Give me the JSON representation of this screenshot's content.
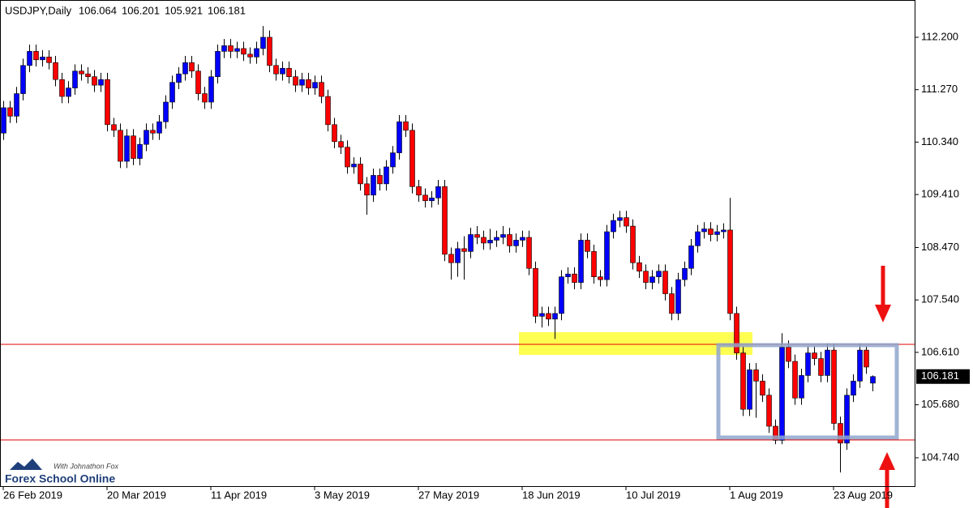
{
  "chart_data": {
    "type": "candlestick",
    "title": "USDJPY,Daily",
    "bull_color": "#0000ff",
    "bear_color": "#ff0000",
    "watermark": {
      "brand": "Forex School Online",
      "tagline": "With Johnathon Fox"
    },
    "categories": [
      "26 Feb 2019",
      null,
      null,
      null,
      null,
      null,
      null,
      null,
      null,
      null,
      null,
      null,
      null,
      null,
      null,
      null,
      "20 Mar 2019",
      null,
      null,
      null,
      null,
      null,
      null,
      null,
      null,
      null,
      null,
      null,
      null,
      null,
      null,
      null,
      "11 Apr 2019",
      null,
      null,
      null,
      null,
      null,
      null,
      null,
      null,
      null,
      null,
      null,
      null,
      null,
      null,
      null,
      "3 May 2019",
      null,
      null,
      null,
      null,
      null,
      null,
      null,
      null,
      null,
      null,
      null,
      null,
      null,
      null,
      null,
      "27 May 2019",
      null,
      null,
      null,
      null,
      null,
      null,
      null,
      null,
      null,
      null,
      null,
      null,
      null,
      null,
      null,
      "18 Jun 2019",
      null,
      null,
      null,
      null,
      null,
      null,
      null,
      null,
      null,
      null,
      null,
      null,
      null,
      null,
      null,
      "10 Jul 2019",
      null,
      null,
      null,
      null,
      null,
      null,
      null,
      null,
      null,
      null,
      null,
      null,
      null,
      null,
      null,
      "1 Aug 2019",
      null,
      null,
      null,
      null,
      null,
      null,
      null,
      null,
      null,
      null,
      null,
      null,
      null,
      null,
      null,
      "23 Aug 2019",
      null,
      null,
      null,
      null,
      null,
      null
    ],
    "open": [
      110.5,
      110.95,
      110.8,
      111.2,
      111.7,
      111.95,
      111.8,
      111.85,
      111.75,
      111.45,
      111.15,
      111.3,
      111.6,
      111.55,
      111.5,
      111.35,
      111.45,
      110.65,
      110.55,
      110.0,
      110.45,
      110.05,
      110.3,
      110.55,
      110.5,
      110.7,
      111.05,
      111.4,
      111.55,
      111.75,
      111.6,
      111.2,
      111.05,
      111.5,
      111.95,
      112.05,
      111.95,
      112.0,
      111.9,
      111.85,
      112.0,
      112.2,
      111.7,
      111.55,
      111.65,
      111.5,
      111.35,
      111.45,
      111.3,
      111.4,
      111.15,
      110.65,
      110.35,
      110.25,
      109.9,
      109.95,
      109.6,
      109.4,
      109.75,
      109.6,
      109.9,
      110.15,
      110.7,
      110.55,
      109.55,
      109.4,
      109.3,
      109.35,
      109.55,
      108.35,
      108.2,
      108.45,
      108.4,
      108.7,
      108.65,
      108.55,
      108.6,
      108.65,
      108.7,
      108.5,
      108.6,
      108.65,
      108.1,
      107.25,
      107.3,
      107.2,
      107.3,
      107.95,
      108.0,
      107.85,
      108.6,
      108.4,
      107.95,
      107.9,
      108.75,
      108.95,
      109.0,
      108.85,
      108.2,
      108.05,
      107.85,
      107.95,
      108.05,
      107.65,
      107.3,
      107.9,
      108.1,
      108.5,
      108.75,
      108.8,
      108.7,
      108.75,
      108.78,
      107.3,
      106.6,
      105.6,
      106.3,
      106.1,
      105.85,
      105.3,
      105.05,
      106.7,
      106.45,
      105.8,
      106.2,
      106.6,
      106.5,
      106.2,
      106.65,
      105.35,
      105.0,
      105.85,
      106.1,
      106.65,
      106.064
    ],
    "high": [
      111.07,
      111.07,
      111.32,
      111.82,
      112.07,
      112.07,
      111.97,
      111.97,
      111.87,
      111.57,
      111.42,
      111.72,
      111.72,
      111.67,
      111.62,
      111.57,
      111.57,
      110.77,
      110.67,
      110.57,
      110.57,
      110.42,
      110.67,
      110.67,
      110.82,
      111.17,
      111.52,
      111.67,
      111.87,
      111.87,
      111.72,
      111.32,
      111.62,
      112.07,
      112.17,
      112.17,
      112.12,
      112.12,
      112.02,
      112.12,
      112.4,
      112.32,
      111.82,
      111.77,
      111.77,
      111.62,
      111.57,
      111.57,
      111.52,
      111.52,
      111.27,
      110.77,
      110.47,
      110.37,
      110.07,
      110.07,
      109.72,
      109.87,
      109.87,
      110.02,
      110.27,
      110.82,
      110.82,
      110.67,
      109.67,
      109.52,
      109.47,
      109.67,
      109.67,
      108.47,
      108.57,
      108.67,
      108.82,
      108.85,
      108.77,
      108.8,
      108.77,
      108.85,
      108.82,
      108.72,
      108.77,
      108.77,
      108.22,
      107.42,
      107.42,
      107.42,
      108.07,
      108.12,
      108.12,
      108.72,
      108.72,
      108.52,
      108.07,
      108.87,
      109.07,
      109.12,
      109.12,
      108.97,
      108.32,
      108.17,
      108.07,
      108.17,
      108.17,
      107.77,
      108.02,
      108.22,
      108.62,
      108.87,
      108.92,
      108.92,
      108.87,
      108.9,
      109.35,
      107.42,
      106.72,
      106.42,
      106.42,
      106.22,
      105.97,
      105.42,
      106.95,
      106.82,
      106.57,
      106.32,
      106.72,
      106.72,
      106.62,
      106.77,
      106.77,
      105.47,
      105.97,
      106.22,
      106.77,
      106.72,
      106.201
    ],
    "low": [
      110.38,
      110.68,
      110.68,
      111.08,
      111.58,
      111.68,
      111.68,
      111.63,
      111.33,
      111.03,
      111.03,
      111.18,
      111.43,
      111.38,
      111.23,
      111.23,
      110.53,
      110.43,
      109.88,
      109.88,
      109.93,
      109.93,
      110.18,
      110.38,
      110.38,
      110.58,
      110.93,
      111.28,
      111.43,
      111.48,
      111.08,
      110.93,
      110.93,
      111.38,
      111.83,
      111.83,
      111.83,
      111.78,
      111.73,
      111.73,
      111.88,
      111.58,
      111.43,
      111.43,
      111.38,
      111.23,
      111.23,
      111.18,
      111.18,
      111.03,
      110.53,
      110.23,
      110.13,
      109.78,
      109.78,
      109.48,
      109.05,
      109.28,
      109.48,
      109.48,
      109.78,
      110.03,
      110.43,
      109.43,
      109.28,
      109.18,
      109.18,
      109.23,
      108.23,
      107.9,
      107.95,
      107.9,
      108.28,
      108.53,
      108.43,
      108.43,
      108.48,
      108.53,
      108.38,
      108.38,
      108.48,
      107.98,
      107.13,
      107.05,
      107.08,
      106.85,
      107.18,
      107.83,
      107.73,
      107.73,
      108.28,
      107.83,
      107.78,
      107.78,
      108.63,
      108.83,
      108.73,
      108.08,
      107.93,
      107.73,
      107.73,
      107.83,
      107.53,
      107.18,
      107.18,
      107.78,
      107.98,
      108.38,
      108.63,
      108.58,
      108.58,
      108.63,
      107.18,
      106.48,
      105.48,
      105.48,
      105.45,
      105.73,
      105.18,
      104.98,
      104.98,
      106.33,
      105.68,
      105.68,
      106.08,
      106.38,
      106.08,
      106.08,
      105.23,
      104.48,
      104.88,
      105.73,
      105.98,
      106.23,
      105.921
    ],
    "close": [
      110.95,
      110.8,
      111.2,
      111.7,
      111.95,
      111.8,
      111.85,
      111.75,
      111.45,
      111.15,
      111.3,
      111.6,
      111.55,
      111.5,
      111.35,
      111.45,
      110.65,
      110.55,
      110.0,
      110.45,
      110.05,
      110.3,
      110.55,
      110.5,
      110.7,
      111.05,
      111.4,
      111.55,
      111.75,
      111.6,
      111.2,
      111.05,
      111.5,
      111.95,
      112.05,
      111.95,
      112.0,
      111.9,
      111.85,
      112.0,
      112.2,
      111.7,
      111.55,
      111.65,
      111.5,
      111.35,
      111.45,
      111.3,
      111.4,
      111.15,
      110.65,
      110.35,
      110.25,
      109.9,
      109.95,
      109.6,
      109.4,
      109.75,
      109.6,
      109.9,
      110.15,
      110.7,
      110.55,
      109.55,
      109.4,
      109.3,
      109.35,
      109.55,
      108.35,
      108.2,
      108.45,
      108.4,
      108.7,
      108.65,
      108.55,
      108.6,
      108.65,
      108.7,
      108.5,
      108.6,
      108.65,
      108.1,
      107.25,
      107.3,
      107.2,
      107.3,
      107.95,
      108.0,
      107.85,
      108.6,
      108.4,
      107.95,
      107.9,
      108.75,
      108.95,
      109.0,
      108.85,
      108.2,
      108.05,
      107.85,
      107.95,
      108.05,
      107.65,
      107.3,
      107.9,
      108.1,
      108.5,
      108.75,
      108.8,
      108.7,
      108.75,
      108.78,
      107.3,
      106.6,
      105.6,
      106.3,
      106.1,
      105.85,
      105.3,
      105.05,
      106.7,
      106.45,
      105.8,
      106.2,
      106.6,
      106.5,
      106.2,
      106.65,
      105.35,
      105.0,
      105.85,
      106.1,
      106.65,
      106.35,
      106.181
    ],
    "ylim": [
      104.237,
      112.861
    ],
    "yticks": [
      {
        "value": 112.2,
        "label": "112.200"
      },
      {
        "value": 111.27,
        "label": "111.270"
      },
      {
        "value": 110.34,
        "label": "110.340"
      },
      {
        "value": 109.41,
        "label": "109.410"
      },
      {
        "value": 108.47,
        "label": "108.470"
      },
      {
        "value": 107.54,
        "label": "107.540"
      },
      {
        "value": 106.61,
        "label": "106.610"
      },
      {
        "value": 105.68,
        "label": "105.680"
      },
      {
        "value": 104.74,
        "label": "104.740"
      }
    ]
  }
}
